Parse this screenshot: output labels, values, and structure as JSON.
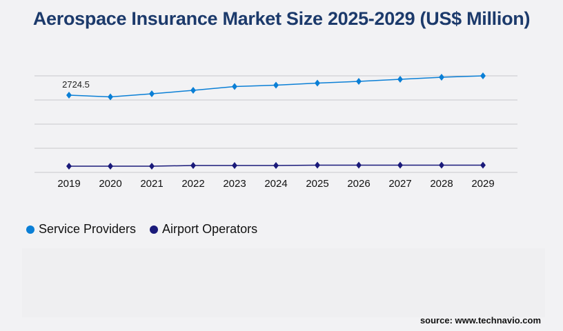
{
  "chart_data": {
    "type": "line",
    "title": "Aerospace Insurance Market Size 2025-2029 (US$ Million)",
    "categories": [
      "2019",
      "2020",
      "2021",
      "2022",
      "2023",
      "2024",
      "2025",
      "2026",
      "2027",
      "2028",
      "2029"
    ],
    "series": [
      {
        "name": "Service Providers",
        "color": "#0a7fd6",
        "values": [
          2724.5,
          2664,
          2773,
          2895,
          3029,
          3078,
          3151,
          3211,
          3284,
          3357,
          3406
        ]
      },
      {
        "name": "Airport Operators",
        "color": "#1a1a7a",
        "values": [
          219,
          219,
          219,
          243,
          243,
          243,
          255,
          255,
          255,
          255,
          255
        ]
      }
    ],
    "data_labels": [
      {
        "series": 0,
        "index": 0,
        "text": "2724.5"
      }
    ],
    "ylim": [
      0,
      3406
    ],
    "grid": true,
    "legend": "bottom-left"
  },
  "source": "source: www.technavio.com"
}
